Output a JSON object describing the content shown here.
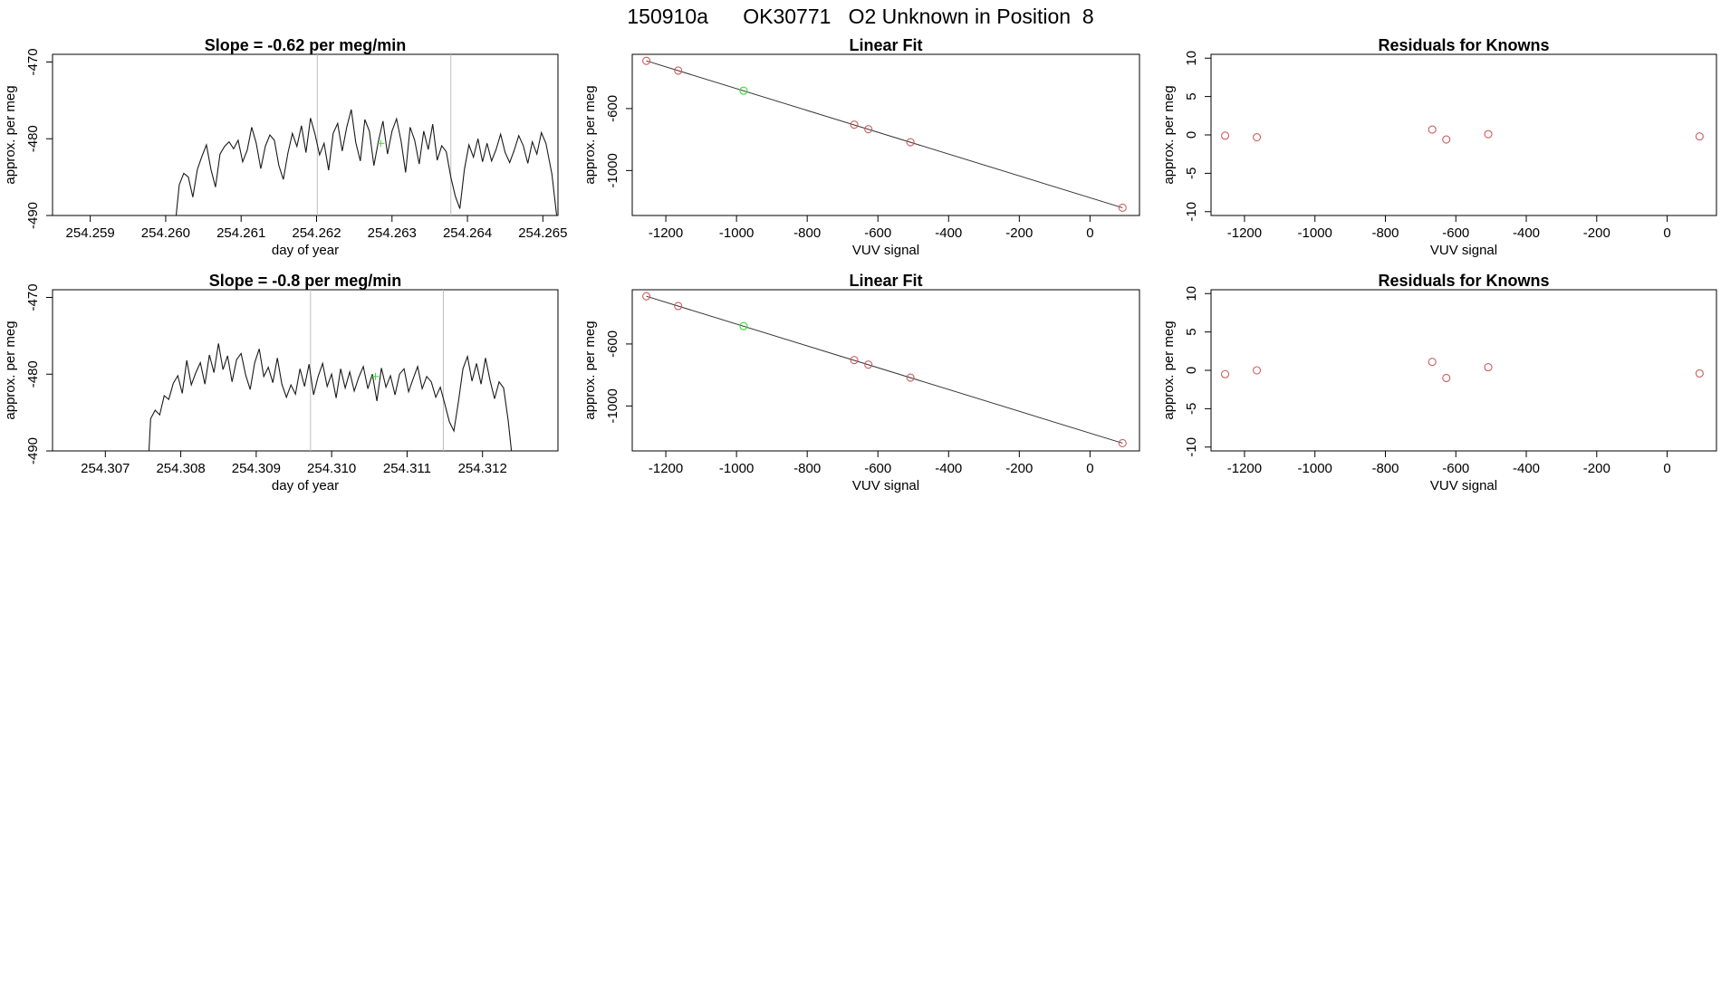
{
  "page": {
    "title": "150910a      OK30771   O2 Unknown in Position  8"
  },
  "colors": {
    "axis": "#000000",
    "trace": "#1a1a1a",
    "marker_window": "#bebebe",
    "known_point": "#cd5c5c",
    "unknown_point": "#33dd33",
    "fit_line": "#333333"
  },
  "chart_data": [
    {
      "id": "trace-1",
      "type": "line",
      "title": "Slope =  -0.62  per meg/min",
      "xlabel": "day of year",
      "ylabel": "approx. per meg",
      "xlim": [
        254.2585,
        254.2652
      ],
      "ylim": [
        -490,
        -469
      ],
      "xticks": [
        254.259,
        254.26,
        254.261,
        254.262,
        254.263,
        254.264,
        254.265
      ],
      "xtick_labels": [
        "254.259",
        "254.260",
        "254.261",
        "254.262",
        "254.263",
        "254.264",
        "254.265"
      ],
      "yticks": [
        -490,
        -480,
        -470
      ],
      "ytick_labels": [
        "-490",
        "-480",
        "-470"
      ],
      "vlines": [
        254.26201,
        254.26378
      ],
      "unknown_mark": {
        "x": 254.26285,
        "y": -480.6
      },
      "series": [
        {
          "values": [
            [
              254.26,
              -491.5
            ],
            [
              254.26008,
              -490.2
            ],
            [
              254.26012,
              -491.8
            ],
            [
              254.26018,
              -486.0
            ],
            [
              254.26024,
              -484.5
            ],
            [
              254.2603,
              -485.0
            ],
            [
              254.26036,
              -487.6
            ],
            [
              254.26042,
              -484.0
            ],
            [
              254.26048,
              -482.3
            ],
            [
              254.26054,
              -480.8
            ],
            [
              254.2606,
              -484.0
            ],
            [
              254.26066,
              -486.3
            ],
            [
              254.26072,
              -482.0
            ],
            [
              254.26078,
              -481.0
            ],
            [
              254.26084,
              -480.4
            ],
            [
              254.2609,
              -481.3
            ],
            [
              254.26096,
              -480.2
            ],
            [
              254.26102,
              -483.0
            ],
            [
              254.26108,
              -481.5
            ],
            [
              254.26114,
              -478.5
            ],
            [
              254.2612,
              -480.6
            ],
            [
              254.26126,
              -483.9
            ],
            [
              254.26132,
              -481.0
            ],
            [
              254.26138,
              -479.5
            ],
            [
              254.26144,
              -480.2
            ],
            [
              254.2615,
              -483.5
            ],
            [
              254.26156,
              -485.3
            ],
            [
              254.26162,
              -481.9
            ],
            [
              254.26168,
              -479.3
            ],
            [
              254.26174,
              -481.0
            ],
            [
              254.2618,
              -478.3
            ],
            [
              254.26186,
              -481.8
            ],
            [
              254.26192,
              -477.3
            ],
            [
              254.26198,
              -479.4
            ],
            [
              254.26204,
              -482.1
            ],
            [
              254.2621,
              -480.6
            ],
            [
              254.26216,
              -484.1
            ],
            [
              254.26222,
              -479.3
            ],
            [
              254.26228,
              -478.0
            ],
            [
              254.26234,
              -481.6
            ],
            [
              254.2624,
              -478.5
            ],
            [
              254.26246,
              -476.2
            ],
            [
              254.26252,
              -480.5
            ],
            [
              254.26258,
              -482.9
            ],
            [
              254.26264,
              -477.5
            ],
            [
              254.2627,
              -479.0
            ],
            [
              254.26276,
              -483.5
            ],
            [
              254.26282,
              -480.3
            ],
            [
              254.26288,
              -477.7
            ],
            [
              254.26294,
              -482.0
            ],
            [
              254.263,
              -479.0
            ],
            [
              254.26306,
              -477.4
            ],
            [
              254.26312,
              -480.3
            ],
            [
              254.26318,
              -484.4
            ],
            [
              254.26324,
              -478.5
            ],
            [
              254.2633,
              -480.2
            ],
            [
              254.26336,
              -483.3
            ],
            [
              254.26342,
              -479.0
            ],
            [
              254.26348,
              -481.4
            ],
            [
              254.26354,
              -478.1
            ],
            [
              254.2636,
              -482.8
            ],
            [
              254.26366,
              -480.9
            ],
            [
              254.26372,
              -481.7
            ],
            [
              254.26378,
              -485.0
            ],
            [
              254.26384,
              -487.5
            ],
            [
              254.2639,
              -489.1
            ],
            [
              254.26396,
              -484.0
            ],
            [
              254.26402,
              -480.8
            ],
            [
              254.26408,
              -482.4
            ],
            [
              254.26414,
              -480.0
            ],
            [
              254.2642,
              -483.0
            ],
            [
              254.26426,
              -480.6
            ],
            [
              254.26432,
              -482.9
            ],
            [
              254.26438,
              -481.4
            ],
            [
              254.26444,
              -479.4
            ],
            [
              254.2645,
              -481.8
            ],
            [
              254.26456,
              -483.1
            ],
            [
              254.26462,
              -481.5
            ],
            [
              254.26468,
              -479.6
            ],
            [
              254.26474,
              -480.9
            ],
            [
              254.2648,
              -483.2
            ],
            [
              254.26486,
              -480.4
            ],
            [
              254.26492,
              -482.0
            ],
            [
              254.26498,
              -479.2
            ],
            [
              254.26504,
              -480.6
            ],
            [
              254.26512,
              -484.6
            ],
            [
              254.2652,
              -491.5
            ]
          ]
        }
      ]
    },
    {
      "id": "fit-1",
      "type": "scatter",
      "title": "Linear Fit",
      "xlabel": "VUV signal",
      "ylabel": "approx. per meg",
      "xlim": [
        -1295,
        140
      ],
      "ylim": [
        -1290,
        -250
      ],
      "xticks": [
        -1200,
        -1000,
        -800,
        -600,
        -400,
        -200,
        0
      ],
      "xtick_labels": [
        "-1200",
        "-1000",
        "-800",
        "-600",
        "-400",
        "-200",
        "0"
      ],
      "yticks": [
        -1000,
        -600
      ],
      "ytick_labels": [
        "-1000",
        "-600"
      ],
      "fit_line": [
        [
          -1255,
          -292
        ],
        [
          92,
          -1240
        ]
      ],
      "known_points": [
        [
          -1255,
          -292
        ],
        [
          -1165,
          -355
        ],
        [
          -667,
          -704
        ],
        [
          -627,
          -733
        ],
        [
          -508,
          -817
        ],
        [
          92,
          -1240
        ]
      ],
      "unknown_points": [
        [
          -980,
          -485
        ]
      ]
    },
    {
      "id": "resid-1",
      "type": "scatter",
      "title": "Residuals for Knowns",
      "xlabel": "VUV signal",
      "ylabel": "approx. per meg",
      "xlim": [
        -1295,
        140
      ],
      "ylim": [
        -10.5,
        10.5
      ],
      "xticks": [
        -1200,
        -1000,
        -800,
        -600,
        -400,
        -200,
        0
      ],
      "xtick_labels": [
        "-1200",
        "-1000",
        "-800",
        "-600",
        "-400",
        "-200",
        "0"
      ],
      "yticks": [
        -10,
        -5,
        0,
        5,
        10
      ],
      "ytick_labels": [
        "-10",
        "-5",
        "0",
        "5",
        "10"
      ],
      "known_points": [
        [
          -1255,
          -0.1
        ],
        [
          -1165,
          -0.3
        ],
        [
          -667,
          0.7
        ],
        [
          -627,
          -0.6
        ],
        [
          -508,
          0.1
        ],
        [
          92,
          -0.2
        ]
      ]
    },
    {
      "id": "trace-2",
      "type": "line",
      "title": "Slope =  -0.8  per meg/min",
      "xlabel": "day of year",
      "ylabel": "approx. per meg",
      "xlim": [
        254.3063,
        254.313
      ],
      "ylim": [
        -490,
        -469
      ],
      "xticks": [
        254.307,
        254.308,
        254.309,
        254.31,
        254.311,
        254.312
      ],
      "xtick_labels": [
        "254.307",
        "254.308",
        "254.309",
        "254.310",
        "254.311",
        "254.312"
      ],
      "yticks": [
        -490,
        -480,
        -470
      ],
      "ytick_labels": [
        "-490",
        "-480",
        "-470"
      ],
      "vlines": [
        254.30972,
        254.31148
      ],
      "unknown_mark": {
        "x": 254.31058,
        "y": -480.3
      },
      "series": [
        {
          "values": [
            [
              254.30757,
              -491.5
            ],
            [
              254.3076,
              -485.8
            ],
            [
              254.30766,
              -484.7
            ],
            [
              254.30772,
              -485.3
            ],
            [
              254.30778,
              -482.8
            ],
            [
              254.30784,
              -483.3
            ],
            [
              254.3079,
              -481.2
            ],
            [
              254.30796,
              -480.2
            ],
            [
              254.30802,
              -482.5
            ],
            [
              254.30808,
              -478.2
            ],
            [
              254.30814,
              -481.4
            ],
            [
              254.3082,
              -479.8
            ],
            [
              254.30826,
              -478.5
            ],
            [
              254.30832,
              -481.3
            ],
            [
              254.30838,
              -477.5
            ],
            [
              254.30844,
              -479.8
            ],
            [
              254.3085,
              -476.0
            ],
            [
              254.30856,
              -479.4
            ],
            [
              254.30862,
              -477.6
            ],
            [
              254.30868,
              -481.0
            ],
            [
              254.30874,
              -478.1
            ],
            [
              254.3088,
              -477.3
            ],
            [
              254.30886,
              -480.1
            ],
            [
              254.30892,
              -482.0
            ],
            [
              254.30898,
              -478.5
            ],
            [
              254.30904,
              -476.7
            ],
            [
              254.3091,
              -480.3
            ],
            [
              254.30916,
              -479.1
            ],
            [
              254.30922,
              -481.1
            ],
            [
              254.30928,
              -477.9
            ],
            [
              254.30934,
              -481.3
            ],
            [
              254.3094,
              -483.0
            ],
            [
              254.30946,
              -481.4
            ],
            [
              254.30952,
              -482.6
            ],
            [
              254.30958,
              -479.3
            ],
            [
              254.30964,
              -481.6
            ],
            [
              254.3097,
              -478.7
            ],
            [
              254.30976,
              -482.7
            ],
            [
              254.30982,
              -480.3
            ],
            [
              254.30988,
              -478.6
            ],
            [
              254.30994,
              -481.6
            ],
            [
              254.31,
              -480.0
            ],
            [
              254.31006,
              -483.1
            ],
            [
              254.31012,
              -479.3
            ],
            [
              254.31018,
              -481.8
            ],
            [
              254.31024,
              -479.7
            ],
            [
              254.3103,
              -482.2
            ],
            [
              254.31036,
              -480.4
            ],
            [
              254.31042,
              -479.0
            ],
            [
              254.31048,
              -481.9
            ],
            [
              254.31054,
              -480.0
            ],
            [
              254.3106,
              -483.5
            ],
            [
              254.31066,
              -479.2
            ],
            [
              254.31072,
              -481.7
            ],
            [
              254.31078,
              -480.2
            ],
            [
              254.31084,
              -482.7
            ],
            [
              254.3109,
              -480.0
            ],
            [
              254.31096,
              -479.3
            ],
            [
              254.31102,
              -482.3
            ],
            [
              254.31108,
              -480.6
            ],
            [
              254.31114,
              -479.0
            ],
            [
              254.3112,
              -481.9
            ],
            [
              254.31126,
              -480.3
            ],
            [
              254.31132,
              -481.0
            ],
            [
              254.31138,
              -483.0
            ],
            [
              254.31144,
              -481.7
            ],
            [
              254.3115,
              -483.9
            ],
            [
              254.31156,
              -486.2
            ],
            [
              254.31162,
              -487.4
            ],
            [
              254.31168,
              -483.6
            ],
            [
              254.31174,
              -479.3
            ],
            [
              254.3118,
              -477.7
            ],
            [
              254.31186,
              -480.9
            ],
            [
              254.31192,
              -478.6
            ],
            [
              254.31198,
              -481.3
            ],
            [
              254.31204,
              -477.9
            ],
            [
              254.3121,
              -480.8
            ],
            [
              254.31216,
              -483.2
            ],
            [
              254.31222,
              -481.0
            ],
            [
              254.31228,
              -481.8
            ],
            [
              254.31234,
              -486.0
            ],
            [
              254.3124,
              -491.5
            ]
          ]
        }
      ]
    },
    {
      "id": "fit-2",
      "type": "scatter",
      "title": "Linear Fit",
      "xlabel": "VUV signal",
      "ylabel": "approx. per meg",
      "xlim": [
        -1295,
        140
      ],
      "ylim": [
        -1290,
        -250
      ],
      "xticks": [
        -1200,
        -1000,
        -800,
        -600,
        -400,
        -200,
        0
      ],
      "xtick_labels": [
        "-1200",
        "-1000",
        "-800",
        "-600",
        "-400",
        "-200",
        "0"
      ],
      "yticks": [
        -1000,
        -600
      ],
      "ytick_labels": [
        "-1000",
        "-600"
      ],
      "fit_line": [
        [
          -1255,
          -292
        ],
        [
          92,
          -1240
        ]
      ],
      "known_points": [
        [
          -1255,
          -292
        ],
        [
          -1165,
          -355
        ],
        [
          -667,
          -704
        ],
        [
          -627,
          -733
        ],
        [
          -508,
          -817
        ],
        [
          92,
          -1240
        ]
      ],
      "unknown_points": [
        [
          -980,
          -485
        ]
      ]
    },
    {
      "id": "resid-2",
      "type": "scatter",
      "title": "Residuals for Knowns",
      "xlabel": "VUV signal",
      "ylabel": "approx. per meg",
      "xlim": [
        -1295,
        140
      ],
      "ylim": [
        -10.5,
        10.5
      ],
      "xticks": [
        -1200,
        -1000,
        -800,
        -600,
        -400,
        -200,
        0
      ],
      "xtick_labels": [
        "-1200",
        "-1000",
        "-800",
        "-600",
        "-400",
        "-200",
        "0"
      ],
      "yticks": [
        -10,
        -5,
        0,
        5,
        10
      ],
      "ytick_labels": [
        "-10",
        "-5",
        "0",
        "5",
        "10"
      ],
      "known_points": [
        [
          -1255,
          -0.5
        ],
        [
          -1165,
          0.0
        ],
        [
          -667,
          1.1
        ],
        [
          -627,
          -1.0
        ],
        [
          -508,
          0.4
        ],
        [
          92,
          -0.4
        ]
      ]
    }
  ]
}
